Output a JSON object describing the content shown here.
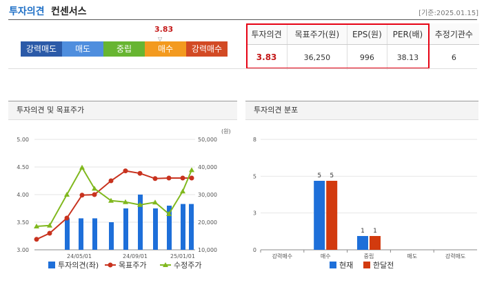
{
  "header": {
    "title_blue": "투자의견",
    "title_black": "컨센서스",
    "ref_date": "[기준:2025.01.15]"
  },
  "scale": {
    "value_label": "3.83",
    "value": 3.83,
    "items": [
      {
        "label": "강력매도",
        "color": "#2b5aa8"
      },
      {
        "label": "매도",
        "color": "#4f8ede"
      },
      {
        "label": "중립",
        "color": "#67b531"
      },
      {
        "label": "매수",
        "color": "#f39a1f"
      },
      {
        "label": "강력매수",
        "color": "#d24a24"
      }
    ]
  },
  "summary_table": {
    "headers": [
      "투자의견",
      "목표주가(원)",
      "EPS(원)",
      "PER(배)",
      "추정기관수"
    ],
    "values": [
      "3.83",
      "36,250",
      "996",
      "38.13",
      "6"
    ]
  },
  "panels": {
    "left_title": "투자의견 및 목표주가",
    "right_title": "투자의견 분포"
  },
  "chart_data": [
    {
      "type": "bar+line",
      "title": "투자의견 및 목표주가",
      "y_left": {
        "ylim": [
          3.0,
          5.0
        ],
        "ticks": [
          "5.00",
          "4.50",
          "4.00",
          "3.50",
          "3.00"
        ]
      },
      "y_right": {
        "unit": "(원)",
        "ylim": [
          10000,
          50000
        ],
        "ticks": [
          "50,000",
          "40,000",
          "30,000",
          "20,000",
          "10,000"
        ]
      },
      "x_ticks": [
        "24/05/01",
        "24/09/01",
        "25/01/01"
      ],
      "series": [
        {
          "name": "투자의견(좌)",
          "kind": "bar",
          "color": "#1e6fd9",
          "values": [
            3.57,
            3.57,
            3.57,
            3.5,
            3.75,
            4.0,
            3.75,
            3.8,
            3.83,
            3.83
          ]
        },
        {
          "name": "목표주가",
          "kind": "line",
          "color": "#c8321e",
          "values": [
            13800,
            16000,
            21500,
            29800,
            30000,
            35000,
            38600,
            37700,
            35800,
            36000,
            36000,
            36000
          ]
        },
        {
          "name": "수정주가",
          "kind": "line",
          "color": "#80b81e",
          "values": [
            18500,
            18800,
            30000,
            39800,
            32200,
            27800,
            27300,
            26300,
            27200,
            23000,
            31200,
            38900
          ]
        }
      ],
      "legend": [
        "투자의견(좌)",
        "목표주가",
        "수정주가"
      ],
      "legend_position": "bottom"
    },
    {
      "type": "bar",
      "title": "투자의견 분포",
      "categories": [
        "강력매수",
        "매수",
        "중립",
        "매도",
        "강력매도"
      ],
      "ylim": [
        0,
        8
      ],
      "ticks": [
        "8",
        "5",
        "3",
        "0"
      ],
      "series": [
        {
          "name": "현재",
          "color": "#1e6fd9",
          "values": [
            0,
            5,
            1,
            0,
            0
          ]
        },
        {
          "name": "한달전",
          "color": "#d23a0e",
          "values": [
            0,
            5,
            1,
            0,
            0
          ]
        }
      ],
      "legend_position": "bottom"
    }
  ]
}
